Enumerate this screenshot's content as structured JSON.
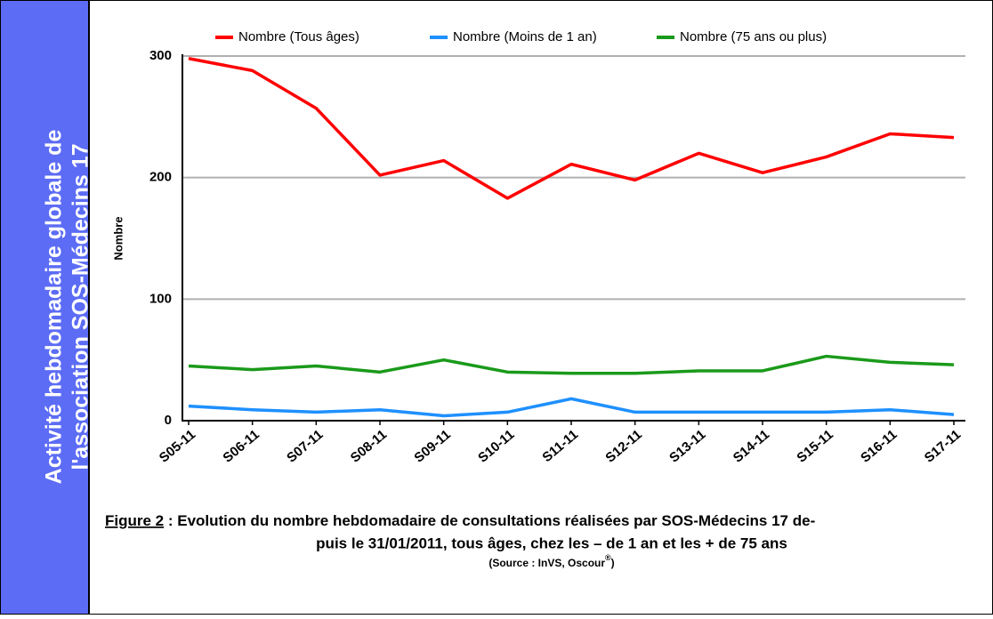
{
  "panel": {
    "lines": [
      "Activité hebdomadaire globale de",
      "l'association SOS-Médecins 17"
    ]
  },
  "chart_data": {
    "type": "line",
    "y_label": "Nombre",
    "categories": [
      "S05-11",
      "S06-11",
      "S07-11",
      "S08-11",
      "S09-11",
      "S10-11",
      "S11-11",
      "S12-11",
      "S13-11",
      "S14-11",
      "S15-11",
      "S16-11",
      "S17-11"
    ],
    "series": [
      {
        "name": "Nombre (Tous âges)",
        "color": "#ff0000",
        "values": [
          298,
          288,
          257,
          202,
          214,
          183,
          211,
          198,
          220,
          204,
          217,
          236,
          233
        ]
      },
      {
        "name": "Nombre (Moins de 1 an)",
        "color": "#1e90ff",
        "values": [
          12,
          9,
          7,
          9,
          4,
          7,
          18,
          7,
          7,
          7,
          7,
          9,
          5
        ]
      },
      {
        "name": "Nombre (75 ans ou plus)",
        "color": "#1a9a1a",
        "values": [
          45,
          42,
          45,
          40,
          50,
          40,
          39,
          39,
          41,
          41,
          53,
          48,
          46
        ]
      }
    ],
    "ylim": [
      0,
      300
    ],
    "yticks": [
      0,
      100,
      200,
      300
    ],
    "grid": true,
    "legend": "top",
    "caption": {
      "figure": "Figure 2",
      "lines": [
        " : Evolution du nombre hebdomadaire de consultations réalisées par SOS-Médecins 17 de-",
        "puis le 31/01/2011, tous âges, chez les – de 1 an et les  + de 75 ans"
      ],
      "source": "(Source : InVS, Oscour",
      "source_mark": "®",
      "source_end": ")"
    }
  }
}
